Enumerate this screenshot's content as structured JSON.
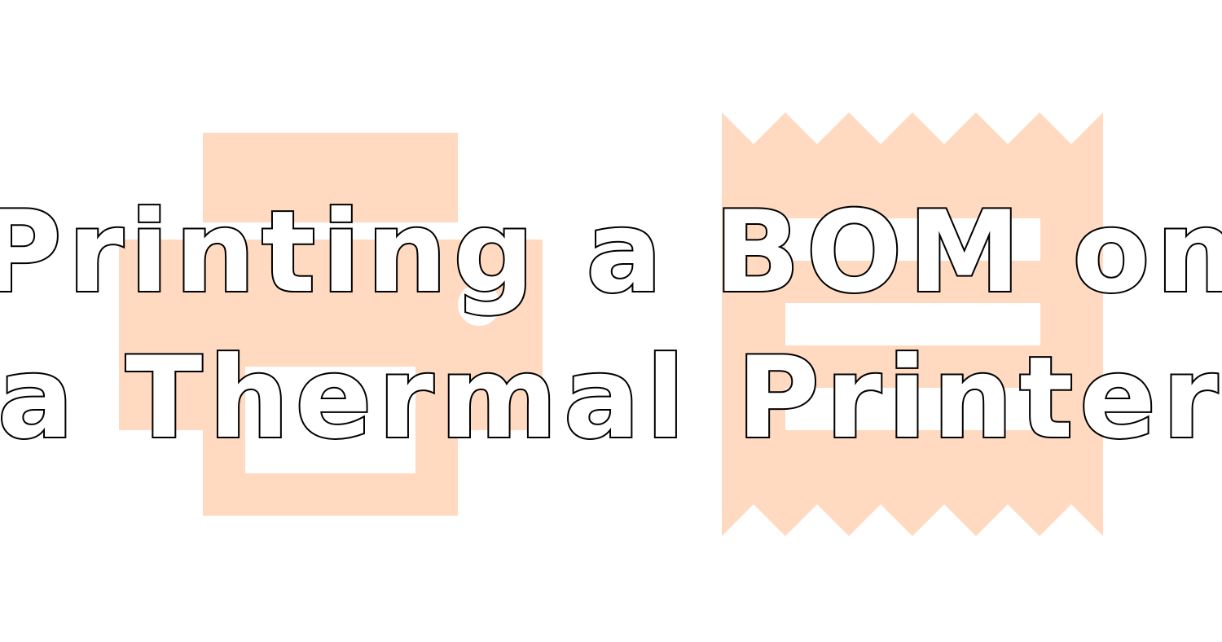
{
  "title": {
    "line1": "Printing a BOM on",
    "line2": "a Thermal Printer"
  },
  "illustration": {
    "left_icon": "printer-icon",
    "right_icon": "receipt-icon",
    "accent_color": "#FFDAC0",
    "background_color": "#FFFFFF",
    "text_fill_color": "#FFFFFF",
    "text_outline_color": "#000000"
  }
}
